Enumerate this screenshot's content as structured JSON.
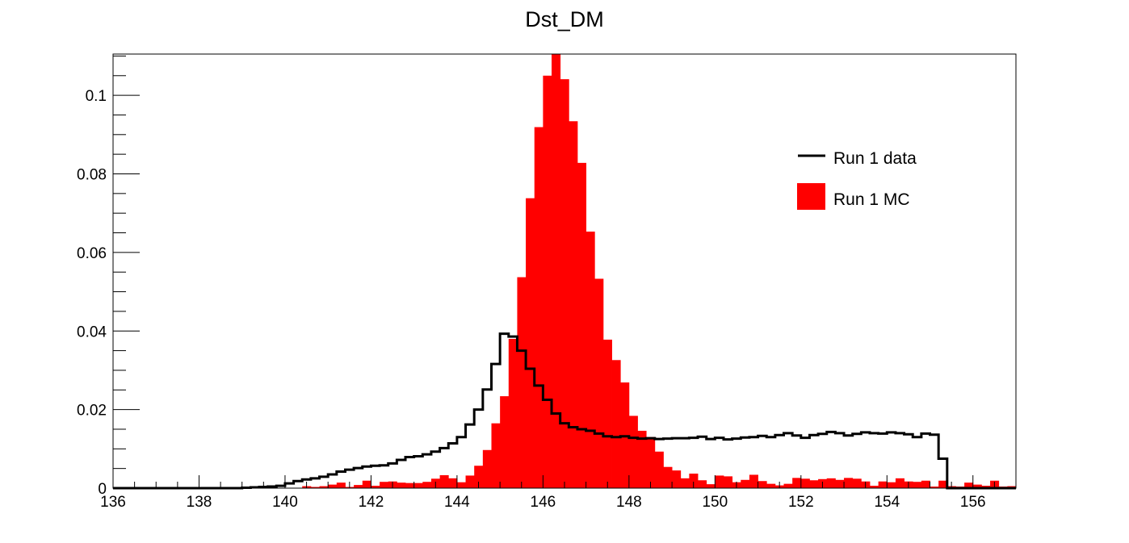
{
  "chart_data": {
    "type": "histogram",
    "title": "Dst_DM",
    "xlabel": "",
    "ylabel": "",
    "xlim": [
      136,
      157
    ],
    "ylim": [
      0,
      0.1105
    ],
    "x_ticks": [
      136,
      138,
      140,
      142,
      144,
      146,
      148,
      150,
      152,
      154,
      156
    ],
    "x_tick_labels": [
      "136",
      "138",
      "140",
      "142",
      "144",
      "146",
      "148",
      "150",
      "152",
      "154",
      "156"
    ],
    "y_ticks": [
      0,
      0.02,
      0.04,
      0.06,
      0.08,
      0.1
    ],
    "y_tick_labels": [
      "0",
      "0.02",
      "0.04",
      "0.06",
      "0.08",
      "0.1"
    ],
    "bin_edges_start": 136,
    "bin_width": 0.2,
    "grid": false,
    "legend_position": "upper-right",
    "series": [
      {
        "name": "Run 1 data",
        "style": "step",
        "color": "#000000",
        "values": [
          0,
          0,
          0,
          0,
          0,
          0,
          0,
          0,
          0,
          0,
          0,
          0,
          0,
          0,
          0,
          0.0001,
          0.0002,
          0.0003,
          0.0004,
          0.0006,
          0.0012,
          0.0018,
          0.0022,
          0.0025,
          0.0029,
          0.0035,
          0.0042,
          0.0047,
          0.0051,
          0.0055,
          0.0057,
          0.0058,
          0.0063,
          0.0072,
          0.0079,
          0.0081,
          0.0086,
          0.0093,
          0.0102,
          0.0114,
          0.013,
          0.0162,
          0.02,
          0.0251,
          0.0316,
          0.0393,
          0.0386,
          0.035,
          0.0304,
          0.0261,
          0.0225,
          0.019,
          0.0165,
          0.0155,
          0.015,
          0.0146,
          0.0139,
          0.0132,
          0.013,
          0.0132,
          0.0128,
          0.0126,
          0.0127,
          0.0125,
          0.0126,
          0.0127,
          0.0127,
          0.0128,
          0.0131,
          0.0125,
          0.0128,
          0.0124,
          0.0126,
          0.0129,
          0.013,
          0.0133,
          0.013,
          0.0135,
          0.014,
          0.0134,
          0.0128,
          0.0135,
          0.0138,
          0.0143,
          0.014,
          0.0134,
          0.0138,
          0.0142,
          0.014,
          0.0139,
          0.0142,
          0.014,
          0.0137,
          0.013,
          0.0139,
          0.0136,
          0.0075,
          0,
          0,
          0,
          0,
          0,
          0,
          0,
          0
        ]
      },
      {
        "name": "Run 1 MC",
        "style": "filled",
        "color": "#ff0000",
        "values": [
          0,
          0,
          0,
          0,
          0,
          0,
          0,
          0,
          0,
          0,
          0,
          0,
          0,
          0,
          0,
          0,
          0,
          0,
          0,
          0,
          0,
          0,
          0.0005,
          0.0003,
          0.0005,
          0.0009,
          0.0014,
          0.0003,
          0.0008,
          0.0019,
          0.0006,
          0.0016,
          0.0017,
          0.0014,
          0.0013,
          0.0013,
          0.0016,
          0.0024,
          0.0033,
          0.0025,
          0.0015,
          0.0032,
          0.0057,
          0.0097,
          0.0165,
          0.0234,
          0.038,
          0.0537,
          0.0738,
          0.0919,
          0.105,
          0.1113,
          0.1041,
          0.0934,
          0.0828,
          0.0653,
          0.0533,
          0.0378,
          0.0326,
          0.0269,
          0.0184,
          0.0146,
          0.013,
          0.0093,
          0.0054,
          0.0045,
          0.0025,
          0.0037,
          0.002,
          0.001,
          0.0032,
          0.003,
          0.0015,
          0.0021,
          0.0034,
          0.0018,
          0.0011,
          0.0007,
          0.0011,
          0.0026,
          0.0024,
          0.002,
          0.0023,
          0.0025,
          0.0021,
          0.0026,
          0.0024,
          0.0017,
          0.0006,
          0.0017,
          0.0015,
          0.0025,
          0.0017,
          0.0016,
          0.0019,
          0.0004,
          0.0019,
          0.0005,
          0.0004,
          0.0014,
          0.0009,
          0.0006,
          0.0019,
          0.0004,
          0.0005
        ]
      }
    ]
  }
}
